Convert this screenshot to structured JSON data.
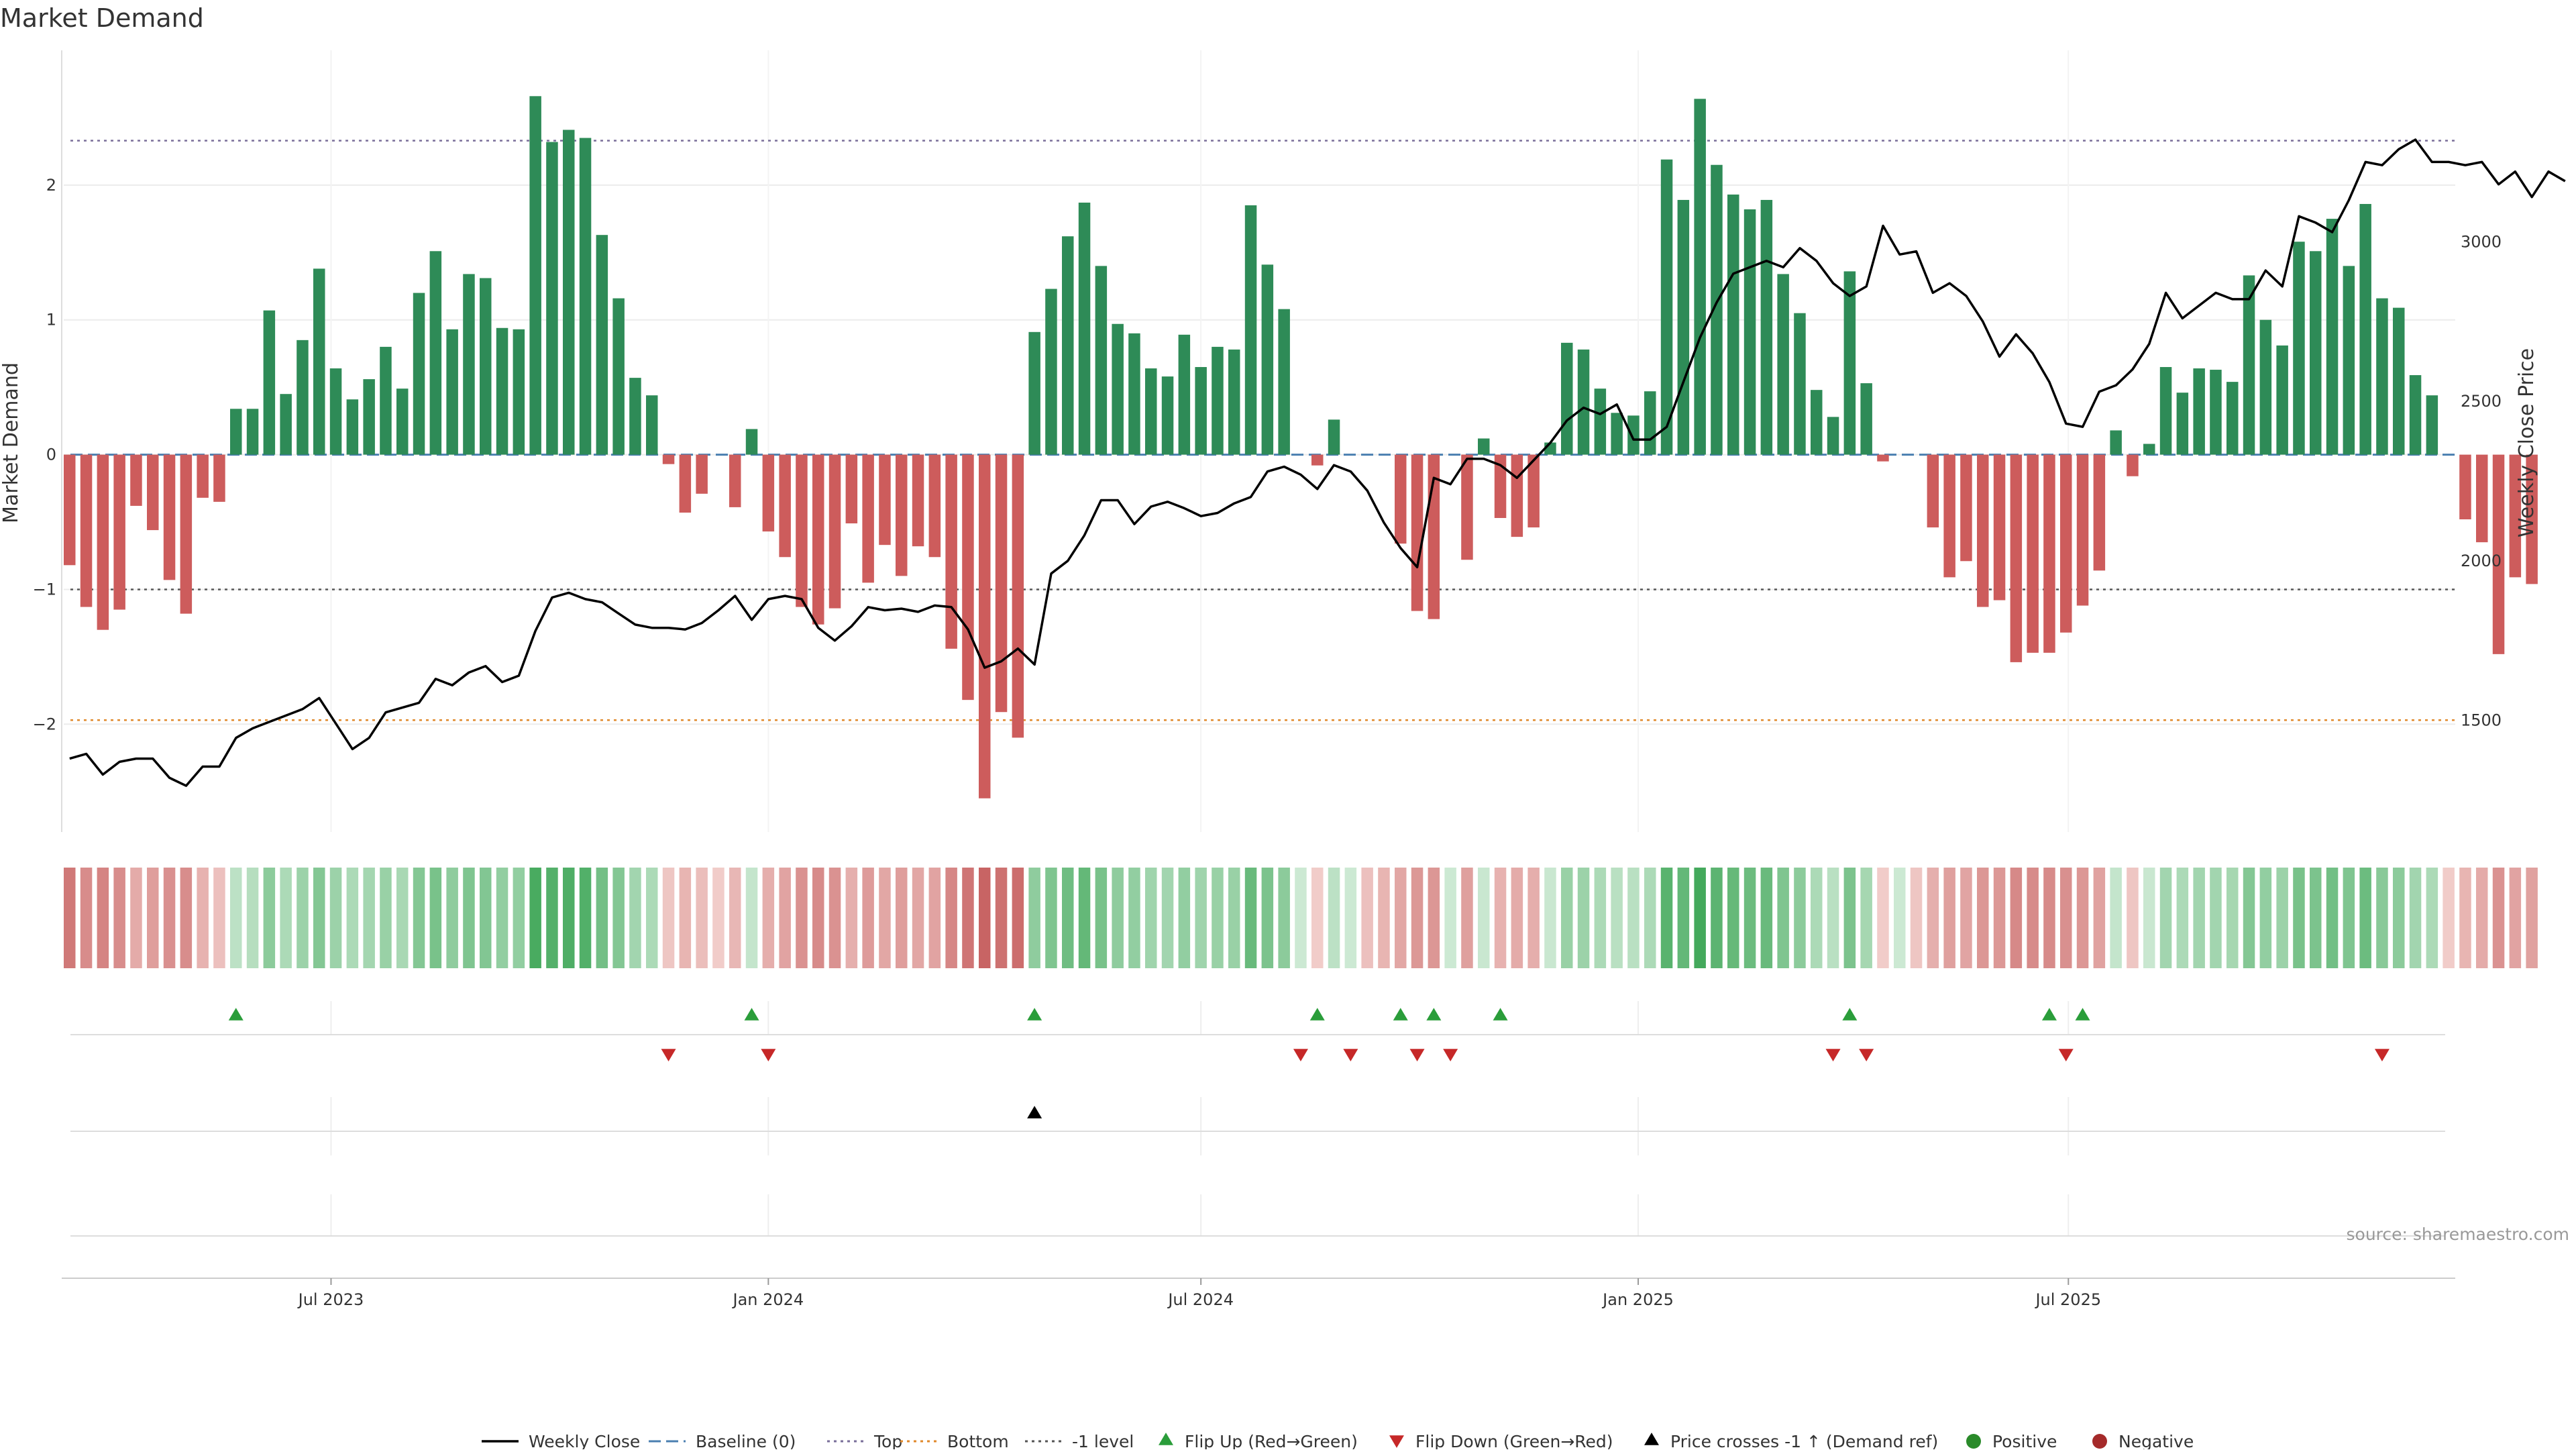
{
  "chart_data": {
    "type": "bar",
    "title": "Market Demand",
    "ylabel_left": "Market Demand",
    "ylabel_right": "Weekly Close Price",
    "source": "source: sharemaestro.com",
    "x_start": "2023-03-13",
    "x_interval": "weekly",
    "demand_ylim": [
      -2.8,
      3.0
    ],
    "demand_yticks": [
      "2",
      "1",
      "0",
      "−1",
      "−2"
    ],
    "demand_ytick_values": [
      2,
      1,
      0,
      -1,
      -2
    ],
    "price_ylim": [
      1150,
      3600
    ],
    "price_yticks": [
      "3000",
      "2500",
      "2000",
      "1500"
    ],
    "price_ytick_values": [
      3000,
      2500,
      2000,
      1500
    ],
    "x_ticks": [
      {
        "date": "2023-07-01",
        "label": "Jul 2023"
      },
      {
        "date": "2024-01-01",
        "label": "Jan 2024"
      },
      {
        "date": "2024-07-01",
        "label": "Jul 2024"
      },
      {
        "date": "2025-01-01",
        "label": "Jan 2025"
      },
      {
        "date": "2025-07-01",
        "label": "Jul 2025"
      }
    ],
    "reference_lines": [
      {
        "name": "Top",
        "value": 2.33,
        "color": "#7a6f9a",
        "dash": "4,6"
      },
      {
        "name": "-1 level",
        "value": -1.0,
        "color": "#555555",
        "dash": "4,6"
      },
      {
        "name": "Bottom",
        "value": -1.97,
        "color": "#e08a2c",
        "dash": "4,6"
      },
      {
        "name": "Baseline (0)",
        "value": 0,
        "color": "#4a7fb0",
        "dash": "18,8"
      }
    ],
    "demand": [
      -0.82,
      -1.13,
      -1.3,
      -1.15,
      -0.38,
      -0.56,
      -0.93,
      -1.18,
      -0.32,
      -0.35,
      0.34,
      0.34,
      1.07,
      0.45,
      0.85,
      1.38,
      0.64,
      0.41,
      0.56,
      0.8,
      0.49,
      1.2,
      1.51,
      0.93,
      1.34,
      1.31,
      0.94,
      0.93,
      2.66,
      2.32,
      2.41,
      2.35,
      1.63,
      1.16,
      0.57,
      0.44,
      -0.07,
      -0.43,
      -0.29,
      0,
      -0.39,
      0.19,
      -0.57,
      -0.76,
      -1.13,
      -1.26,
      -1.14,
      -0.51,
      -0.95,
      -0.67,
      -0.9,
      -0.68,
      -0.76,
      -1.44,
      -1.82,
      -2.55,
      -1.91,
      -2.1,
      0.91,
      1.23,
      1.62,
      1.87,
      1.4,
      0.97,
      0.9,
      0.64,
      0.58,
      0.89,
      0.65,
      0.8,
      0.78,
      1.85,
      1.41,
      1.08,
      0,
      -0.08,
      0.26,
      0,
      0,
      0,
      -0.66,
      -1.16,
      -1.22,
      0,
      -0.78,
      0.12,
      -0.47,
      -0.61,
      -0.54,
      0.09,
      0.83,
      0.78,
      0.49,
      0.31,
      0.29,
      0.47,
      2.19,
      1.89,
      2.64,
      2.15,
      1.93,
      1.82,
      1.89,
      1.34,
      1.05,
      0.48,
      0.28,
      1.36,
      0.53,
      -0.05,
      0,
      0,
      -0.54,
      -0.91,
      -0.79,
      -1.13,
      -1.08,
      -1.54,
      -1.47,
      -1.47,
      -1.32,
      -1.12,
      -0.86,
      0.18,
      -0.16,
      0.08,
      0.65,
      0.46,
      0.64,
      0.63,
      0.54,
      1.33,
      1.0,
      0.81,
      1.58,
      1.51,
      1.75,
      1.4,
      1.86,
      1.16,
      1.09,
      0.59,
      0.44,
      0,
      -0.48,
      -0.65,
      -1.48,
      -0.91,
      -0.96
    ],
    "price": [
      1380,
      1395,
      1330,
      1370,
      1380,
      1380,
      1320,
      1295,
      1355,
      1355,
      1445,
      1475,
      1495,
      1515,
      1535,
      1570,
      1490,
      1410,
      1445,
      1525,
      1540,
      1555,
      1630,
      1610,
      1650,
      1670,
      1620,
      1640,
      1780,
      1885,
      1900,
      1880,
      1870,
      1835,
      1800,
      1790,
      1790,
      1785,
      1805,
      1845,
      1890,
      1815,
      1880,
      1890,
      1880,
      1790,
      1750,
      1795,
      1855,
      1845,
      1850,
      1840,
      1860,
      1855,
      1785,
      1665,
      1685,
      1725,
      1675,
      1960,
      2000,
      2080,
      2190,
      2190,
      2115,
      2170,
      2185,
      2165,
      2140,
      2150,
      2180,
      2200,
      2280,
      2295,
      2270,
      2225,
      2300,
      2280,
      2220,
      2120,
      2040,
      1980,
      2260,
      2240,
      2320,
      2320,
      2300,
      2260,
      2315,
      2370,
      2440,
      2480,
      2460,
      2490,
      2380,
      2380,
      2420,
      2560,
      2700,
      2810,
      2900,
      2920,
      2940,
      2920,
      2980,
      2940,
      2870,
      2830,
      2860,
      3050,
      2960,
      2970,
      2840,
      2870,
      2830,
      2750,
      2640,
      2710,
      2650,
      2560,
      2430,
      2420,
      2530,
      2550,
      2600,
      2680,
      2840,
      2760,
      2800,
      2840,
      2820,
      2820,
      2910,
      2860,
      3080,
      3060,
      3030,
      3130,
      3250,
      3240,
      3290,
      3320,
      3250,
      3250,
      3240,
      3250,
      3180,
      3220,
      3140,
      3220,
      3190
    ],
    "tiles": [
      -0.82,
      -0.65,
      -0.72,
      -0.64,
      -0.38,
      -0.5,
      -0.62,
      -0.64,
      -0.32,
      -0.2,
      0.2,
      0.24,
      0.5,
      0.3,
      0.4,
      0.55,
      0.4,
      0.3,
      0.35,
      0.42,
      0.32,
      0.55,
      0.62,
      0.48,
      0.58,
      0.56,
      0.46,
      0.46,
      0.92,
      0.85,
      0.88,
      0.86,
      0.65,
      0.55,
      0.36,
      0.3,
      -0.15,
      -0.3,
      -0.22,
      -0.1,
      -0.28,
      0.15,
      -0.36,
      -0.45,
      -0.6,
      -0.66,
      -0.6,
      -0.35,
      -0.52,
      -0.42,
      -0.5,
      -0.42,
      -0.45,
      -0.7,
      -0.85,
      -1.0,
      -0.88,
      -0.92,
      0.48,
      0.58,
      0.68,
      0.75,
      0.62,
      0.48,
      0.46,
      0.38,
      0.36,
      0.46,
      0.38,
      0.42,
      0.42,
      0.72,
      0.6,
      0.5,
      0.1,
      -0.1,
      0.2,
      0.1,
      -0.2,
      -0.3,
      -0.42,
      -0.55,
      -0.56,
      0.1,
      -0.48,
      0.12,
      -0.32,
      -0.38,
      -0.36,
      0.12,
      0.42,
      0.4,
      0.3,
      0.22,
      0.22,
      0.3,
      0.82,
      0.75,
      0.95,
      0.8,
      0.74,
      0.7,
      0.72,
      0.58,
      0.5,
      0.3,
      0.22,
      0.6,
      0.34,
      -0.1,
      0.1,
      -0.15,
      -0.35,
      -0.48,
      -0.44,
      -0.56,
      -0.55,
      -0.68,
      -0.66,
      -0.66,
      -0.62,
      -0.56,
      -0.46,
      0.15,
      -0.15,
      0.12,
      0.36,
      0.3,
      0.36,
      0.36,
      0.34,
      0.55,
      0.46,
      0.4,
      0.62,
      0.6,
      0.66,
      0.58,
      0.7,
      0.52,
      0.5,
      0.36,
      0.3,
      -0.1,
      -0.3,
      -0.38,
      -0.6,
      -0.45,
      -0.46
    ],
    "flip_up_weeks": [
      10,
      41,
      58,
      75,
      80,
      82,
      86,
      107,
      119,
      121
    ],
    "flip_down_weeks": [
      36,
      42,
      74,
      77,
      81,
      83,
      106,
      108,
      120,
      139
    ],
    "price_cross_weeks": [
      58
    ],
    "colors": {
      "positive_bar": "#2e8b57",
      "negative_bar": "#cd5c5c",
      "price_line": "#000000",
      "flip_up": "#2a9d3a",
      "flip_down": "#c62828",
      "price_cross": "#000000",
      "positive_dot": "#2a8a2a",
      "negative_dot": "#a52a2a"
    },
    "legend": [
      {
        "label": "Weekly Close",
        "kind": "line",
        "color": "#000000"
      },
      {
        "label": "Baseline (0)",
        "kind": "dash",
        "color": "#4a7fb0"
      },
      {
        "label": "Top",
        "kind": "dot",
        "color": "#7a6f9a"
      },
      {
        "label": "Bottom",
        "kind": "dot",
        "color": "#e08a2c"
      },
      {
        "label": "-1 level",
        "kind": "dot",
        "color": "#555555"
      },
      {
        "label": "Flip Up (Red→Green)",
        "kind": "tri-up",
        "color": "#2a9d3a"
      },
      {
        "label": "Flip Down (Green→Red)",
        "kind": "tri-down",
        "color": "#c62828"
      },
      {
        "label": "Price crosses -1 ↑ (Demand ref)",
        "kind": "tri-up",
        "color": "#000000"
      },
      {
        "label": "Positive",
        "kind": "circle",
        "color": "#2a8a2a"
      },
      {
        "label": "Negative",
        "kind": "circle",
        "color": "#a52a2a"
      }
    ]
  }
}
